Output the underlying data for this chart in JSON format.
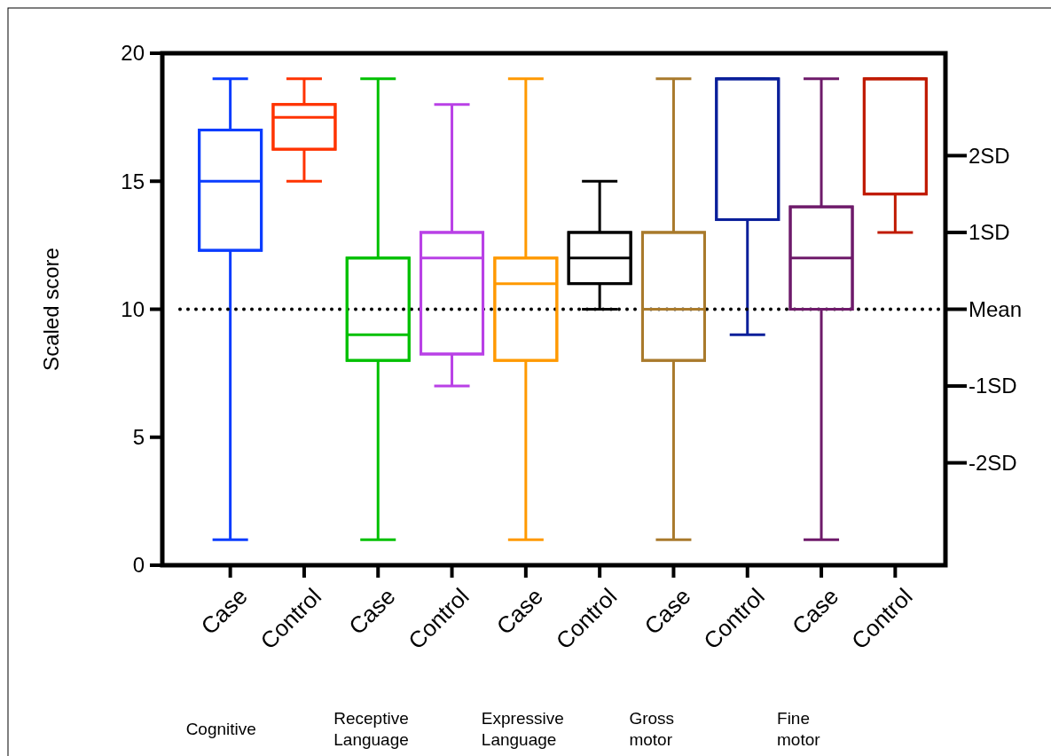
{
  "chart_data": {
    "type": "box",
    "ylabel": "Scaled score",
    "categories": [
      "Case",
      "Control",
      "Case",
      "Control",
      "Case",
      "Control",
      "Case",
      "Control",
      "Case",
      "Control"
    ],
    "colors": [
      "#0a3cff",
      "#ff3300",
      "#00c000",
      "#b940e6",
      "#ff9900",
      "#000000",
      "#a97a2c",
      "#0a1f9a",
      "#6e1a6a",
      "#c01a00"
    ],
    "boxes": [
      {
        "low": 1,
        "q1": 12.3,
        "median": 15,
        "q3": 17,
        "high": 19
      },
      {
        "low": 15,
        "q1": 16.25,
        "median": 17.5,
        "q3": 18,
        "high": 19
      },
      {
        "low": 1,
        "q1": 8,
        "median": 9,
        "q3": 12,
        "high": 19
      },
      {
        "low": 7,
        "q1": 8.25,
        "median": 12,
        "q3": 13,
        "high": 18
      },
      {
        "low": 1,
        "q1": 8,
        "median": 11,
        "q3": 12,
        "high": 19
      },
      {
        "low": 10,
        "q1": 11,
        "median": 12,
        "q3": 13,
        "high": 15
      },
      {
        "low": 1,
        "q1": 8,
        "median": 10,
        "q3": 13,
        "high": 19
      },
      {
        "low": 9,
        "q1": 13.5,
        "median": 19,
        "q3": 19,
        "high": 19
      },
      {
        "low": 1,
        "q1": 10,
        "median": 12,
        "q3": 14,
        "high": 19
      },
      {
        "low": 13,
        "q1": 14.5,
        "median": 19,
        "q3": 19,
        "high": 19
      }
    ],
    "ylim": [
      0,
      20
    ],
    "yticks": [
      0,
      5,
      10,
      15,
      20
    ],
    "ref_lines": [
      {
        "axis": "y",
        "value": 16,
        "label": "2SD",
        "color": "#000000"
      },
      {
        "axis": "y",
        "value": 13,
        "label": "1SD",
        "color": "#000000"
      },
      {
        "axis": "y",
        "value": 10,
        "label": "Mean",
        "color": "#000000",
        "line_style": "dotted"
      },
      {
        "axis": "y",
        "value": 7,
        "label": "-1SD",
        "color": "#000000"
      },
      {
        "axis": "y",
        "value": 4,
        "label": "-2SD",
        "color": "#000000"
      }
    ],
    "annotations": [
      "Cognitive",
      "Receptive Language",
      "Expressive Language",
      "Gross motor",
      "Fine motor"
    ],
    "grid": false
  }
}
